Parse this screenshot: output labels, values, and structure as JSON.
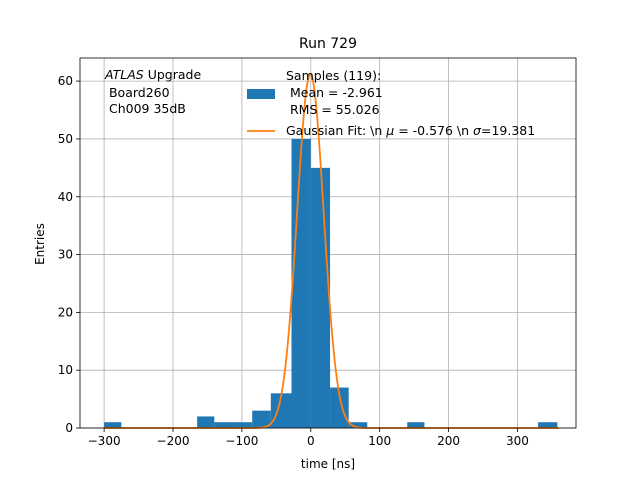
{
  "chart_data": {
    "type": "bar",
    "title": "Run 729",
    "xlabel": "time [ns]",
    "ylabel": "Entries",
    "xlim": [
      -335,
      385
    ],
    "ylim": [
      0,
      64
    ],
    "grid": true,
    "x_ticks": [
      -300,
      -200,
      -100,
      0,
      100,
      200,
      300
    ],
    "x_tick_labels": [
      "−300",
      "−200",
      "−100",
      "0",
      "100",
      "200",
      "300"
    ],
    "y_ticks": [
      0,
      10,
      20,
      30,
      40,
      50,
      60
    ],
    "y_tick_labels": [
      "0",
      "10",
      "20",
      "30",
      "40",
      "50",
      "60"
    ],
    "annotation": {
      "line1_italic": "ATLAS",
      "line1_rest": " Upgrade",
      "line2": " Board260",
      "line3": " Ch009 35dB"
    },
    "histogram": {
      "name_lines": [
        "Samples (119):",
        " Mean = -2.961",
        " RMS = 55.026"
      ],
      "color": "#1f77b4",
      "bin_edges": [
        -300,
        -270,
        -240,
        -210,
        -180,
        -150,
        -120,
        -90,
        -60,
        -30,
        0,
        30,
        60,
        90,
        120,
        150,
        180,
        210,
        240,
        270,
        300,
        330,
        360
      ],
      "bin_starts": [
        -300,
        -270,
        -240,
        -210,
        -180,
        -165,
        -140,
        -105,
        -85,
        -58,
        -28,
        0,
        28,
        55,
        85,
        140,
        170,
        200,
        230,
        260,
        290,
        330
      ],
      "bin_ends": [
        -275,
        -245,
        -215,
        -190,
        -140,
        -140,
        -105,
        -85,
        -58,
        -28,
        0,
        28,
        55,
        82,
        110,
        165,
        195,
        225,
        255,
        285,
        315,
        358
      ],
      "counts": [
        1,
        0,
        0,
        0,
        0,
        2,
        1,
        1,
        3,
        6,
        50,
        45,
        7,
        1,
        0,
        1,
        0,
        0,
        0,
        0,
        0,
        1
      ]
    },
    "fit": {
      "name": "Gaussian Fit: \\n $\\mu$ = -0.576 \\n $\\sigma$=19.381",
      "label_pre": "Gaussian Fit: \\n ",
      "label_mu": "μ",
      "label_mid": " = -0.576 \\n ",
      "label_sigma": "σ",
      "label_post": "=19.381",
      "color": "#ff7f0e",
      "mu": -0.576,
      "sigma": 19.381,
      "amplitude": 61.2,
      "x_range": [
        -300,
        360
      ]
    }
  }
}
